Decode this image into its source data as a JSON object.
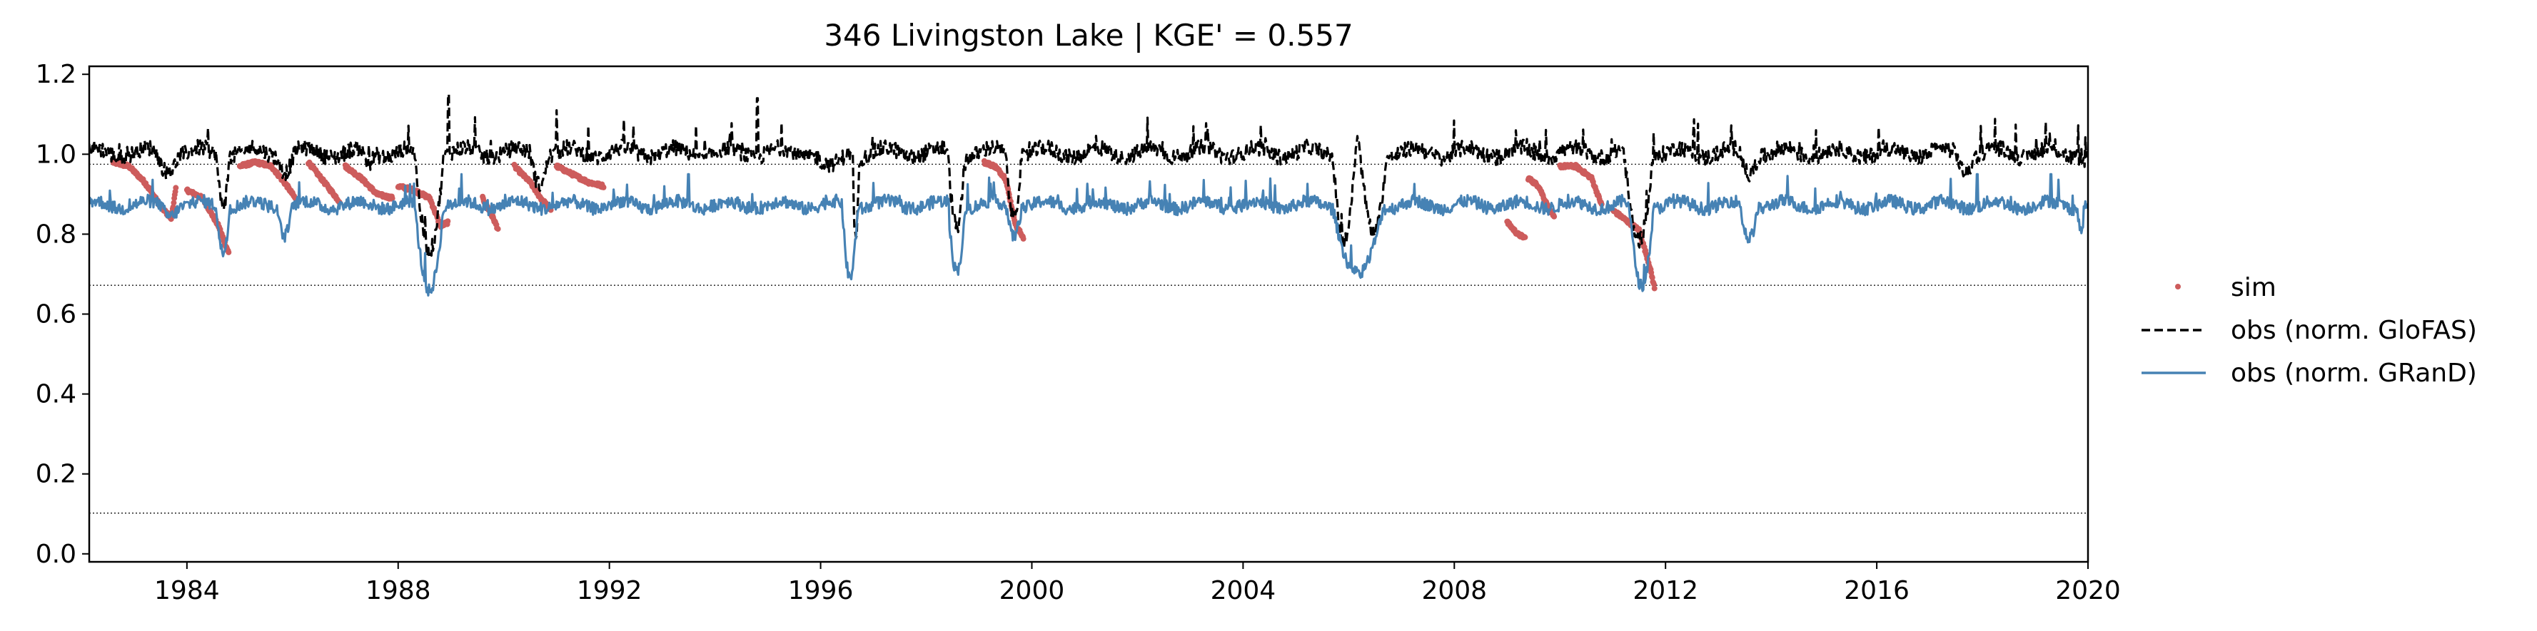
{
  "chart_data": {
    "type": "line",
    "title": "346  Livingston Lake | KGE' = 0.557",
    "xlabel": "",
    "ylabel": "",
    "xlim": [
      1982.15,
      2020.0
    ],
    "ylim": [
      -0.02,
      1.22
    ],
    "x_ticks": [
      "1984",
      "1988",
      "1992",
      "1996",
      "2000",
      "2004",
      "2008",
      "2012",
      "2016",
      "2020"
    ],
    "y_ticks": [
      "0.0",
      "0.2",
      "0.4",
      "0.6",
      "0.8",
      "1.0",
      "1.2"
    ],
    "grid": false,
    "legend_position": "right, outside plot area",
    "reference_lines": [
      0.975,
      0.672,
      0.102
    ],
    "series": [
      {
        "name": "sim",
        "kind": "scatter",
        "color": "#cd5c5c",
        "segments": [
          [
            [
              1982.6,
              0.98
            ],
            [
              1982.9,
              0.97
            ],
            [
              1983.2,
              0.93
            ],
            [
              1983.5,
              0.87
            ],
            [
              1983.7,
              0.84
            ],
            [
              1983.8,
              0.92
            ]
          ],
          [
            [
              1984.0,
              0.91
            ],
            [
              1984.3,
              0.89
            ],
            [
              1984.6,
              0.82
            ],
            [
              1984.8,
              0.75
            ]
          ],
          [
            [
              1985.0,
              0.97
            ],
            [
              1985.3,
              0.98
            ],
            [
              1985.6,
              0.97
            ],
            [
              1985.9,
              0.92
            ],
            [
              1986.1,
              0.88
            ]
          ],
          [
            [
              1986.3,
              0.98
            ],
            [
              1986.6,
              0.93
            ],
            [
              1986.9,
              0.88
            ]
          ],
          [
            [
              1987.0,
              0.97
            ],
            [
              1987.3,
              0.94
            ],
            [
              1987.6,
              0.9
            ],
            [
              1987.9,
              0.89
            ]
          ],
          [
            [
              1988.0,
              0.92
            ],
            [
              1988.3,
              0.91
            ],
            [
              1988.6,
              0.89
            ],
            [
              1988.8,
              0.82
            ],
            [
              1988.95,
              0.83
            ]
          ],
          [
            [
              1989.6,
              0.89
            ],
            [
              1989.8,
              0.84
            ],
            [
              1989.9,
              0.81
            ]
          ],
          [
            [
              1990.2,
              0.97
            ],
            [
              1990.5,
              0.93
            ],
            [
              1990.7,
              0.89
            ],
            [
              1990.9,
              0.86
            ]
          ],
          [
            [
              1991.0,
              0.97
            ],
            [
              1991.3,
              0.95
            ],
            [
              1991.6,
              0.93
            ],
            [
              1991.9,
              0.92
            ]
          ],
          [
            [
              1999.1,
              0.98
            ],
            [
              1999.3,
              0.97
            ],
            [
              1999.5,
              0.94
            ],
            [
              1999.7,
              0.82
            ],
            [
              1999.85,
              0.79
            ]
          ],
          [
            [
              2009.0,
              0.83
            ],
            [
              2009.2,
              0.8
            ],
            [
              2009.35,
              0.79
            ]
          ],
          [
            [
              2009.4,
              0.94
            ],
            [
              2009.6,
              0.92
            ],
            [
              2009.8,
              0.86
            ],
            [
              2009.9,
              0.84
            ]
          ],
          [
            [
              2010.0,
              0.97
            ],
            [
              2010.3,
              0.97
            ],
            [
              2010.6,
              0.94
            ],
            [
              2010.8,
              0.87
            ]
          ],
          [
            [
              2011.0,
              0.86
            ],
            [
              2011.3,
              0.83
            ],
            [
              2011.5,
              0.81
            ],
            [
              2011.7,
              0.72
            ],
            [
              2011.8,
              0.66
            ]
          ]
        ]
      },
      {
        "name": "obs (norm. GloFAS)",
        "kind": "line",
        "style": "dashed",
        "color": "#000000",
        "baseline": 1.0,
        "noise": 0.025,
        "dips": [
          [
            1983.4,
            1983.9,
            0.96
          ],
          [
            1984.55,
            1984.85,
            0.88
          ],
          [
            1985.7,
            1986.1,
            0.96
          ],
          [
            1987.3,
            1987.6,
            0.97
          ],
          [
            1988.3,
            1988.95,
            0.76
          ],
          [
            1990.5,
            1990.9,
            0.93
          ],
          [
            1995.9,
            1996.6,
            0.96
          ],
          [
            1996.6,
            1996.75,
            0.79
          ],
          [
            1998.4,
            1998.8,
            0.82
          ],
          [
            1999.5,
            1999.85,
            0.85
          ],
          [
            2005.7,
            2006.2,
            0.78
          ],
          [
            2006.2,
            2006.8,
            0.8
          ],
          [
            2011.2,
            2011.85,
            0.78
          ],
          [
            2013.4,
            2013.8,
            0.95
          ],
          [
            2017.5,
            2017.9,
            0.96
          ],
          [
            2019.9,
            2020.0,
            0.97
          ]
        ],
        "spikes": [
          [
            1988.95,
            1.15
          ],
          [
            1994.8,
            1.14
          ],
          [
            1991.0,
            1.11
          ]
        ]
      },
      {
        "name": "obs (norm. GRanD)",
        "kind": "line",
        "style": "solid",
        "color": "#4682b4",
        "baseline": 0.87,
        "noise": 0.02,
        "dips": [
          [
            1983.5,
            1983.9,
            0.85
          ],
          [
            1984.55,
            1984.85,
            0.76
          ],
          [
            1985.7,
            1986.05,
            0.8
          ],
          [
            1988.3,
            1988.95,
            0.66
          ],
          [
            1996.4,
            1996.75,
            0.69
          ],
          [
            1998.4,
            1998.8,
            0.71
          ],
          [
            1999.5,
            1999.85,
            0.8
          ],
          [
            2005.7,
            2006.8,
            0.69
          ],
          [
            2011.3,
            2011.85,
            0.67
          ],
          [
            2013.4,
            2013.8,
            0.79
          ],
          [
            2019.8,
            2019.95,
            0.81
          ]
        ],
        "spikes": [
          [
            1989.2,
            0.95
          ],
          [
            1993.5,
            0.95
          ],
          [
            2017.9,
            0.95
          ],
          [
            2019.3,
            0.95
          ]
        ]
      }
    ]
  }
}
